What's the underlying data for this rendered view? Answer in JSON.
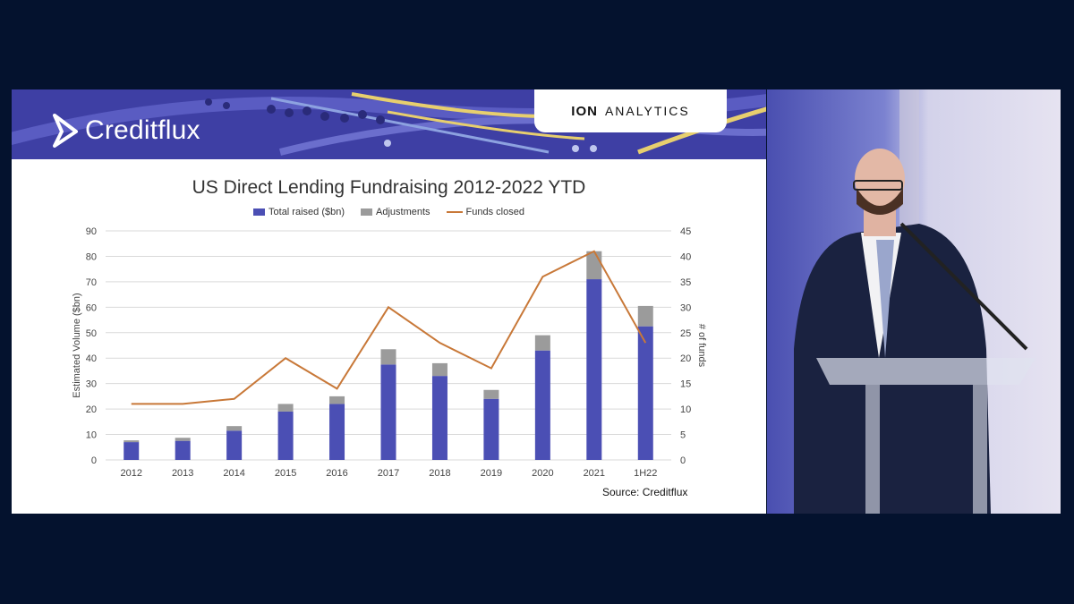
{
  "brand": {
    "name": "Creditflux",
    "partner_mark": "ION",
    "partner_text": "ANALYTICS"
  },
  "colors": {
    "total": "#4b4fb4",
    "adjust": "#9b9b9b",
    "funds": "#c87838"
  },
  "chart_data": {
    "type": "bar",
    "title": "US Direct Lending Fundraising 2012-2022 YTD",
    "categories": [
      "2012",
      "2013",
      "2014",
      "2015",
      "2016",
      "2017",
      "2018",
      "2019",
      "2020",
      "2021",
      "1H22"
    ],
    "series": [
      {
        "name": "Total raised ($bn)",
        "kind": "stacked-bar",
        "values": [
          7,
          7.5,
          11.5,
          19,
          22,
          37.5,
          33,
          24,
          43,
          71,
          52.5
        ]
      },
      {
        "name": "Adjustments",
        "kind": "stacked-bar",
        "values": [
          0.7,
          1.2,
          1.8,
          3,
          3,
          6,
          5,
          3.5,
          6,
          11,
          8
        ]
      },
      {
        "name": "Funds closed",
        "kind": "line",
        "axis": "right",
        "values": [
          11,
          11,
          12,
          20,
          14,
          30,
          23,
          18,
          36,
          41,
          23
        ]
      }
    ],
    "ylabel": "Estimated Volume ($bn)",
    "y2label": "# of funds",
    "ylim": [
      0,
      90
    ],
    "y2lim": [
      0,
      45
    ],
    "yticks": [
      0,
      10,
      20,
      30,
      40,
      50,
      60,
      70,
      80,
      90
    ],
    "y2ticks": [
      0,
      5,
      10,
      15,
      20,
      25,
      30,
      35,
      40,
      45
    ],
    "grid": true,
    "legend": "top-center",
    "source": "Source: Creditflux"
  }
}
